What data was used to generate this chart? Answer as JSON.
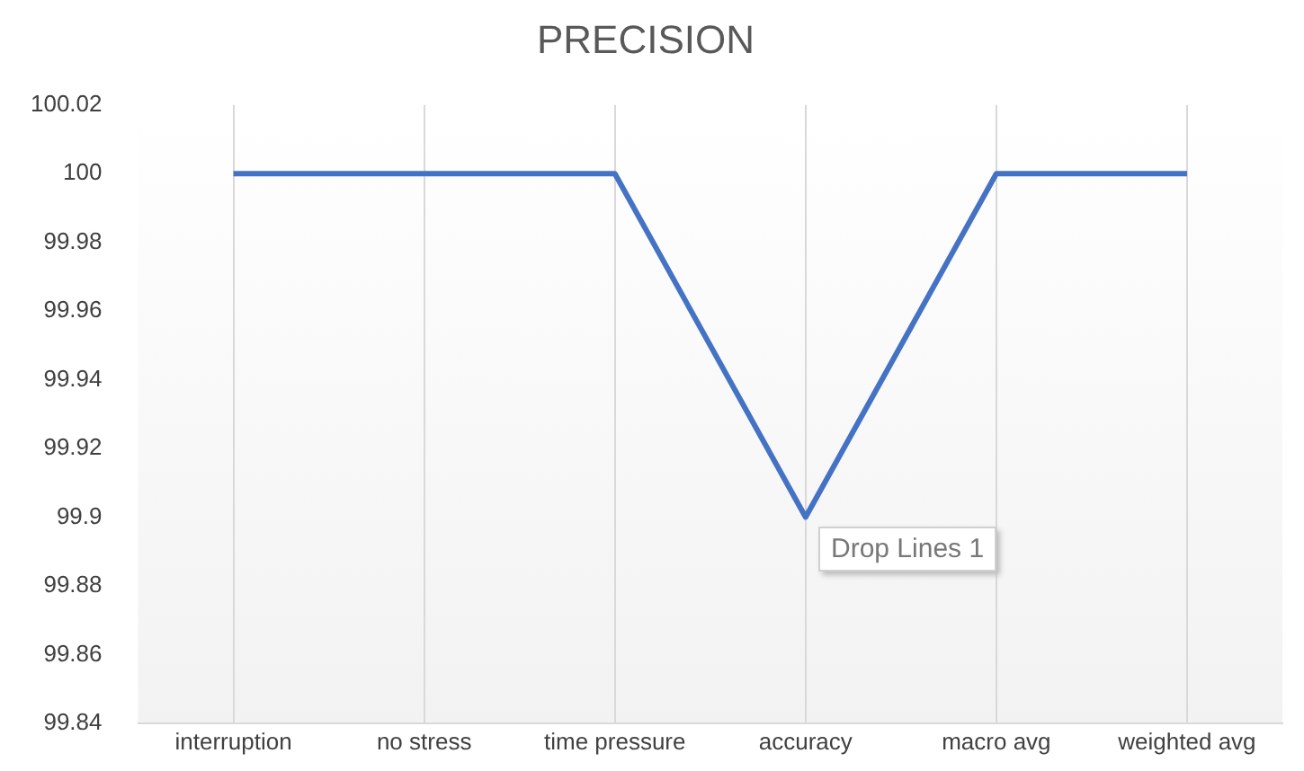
{
  "chart_data": {
    "type": "line",
    "title": "PRECISION",
    "categories": [
      "interruption",
      "no stress",
      "time pressure",
      "accuracy",
      "macro avg",
      "weighted avg"
    ],
    "series": [
      {
        "color": "#4472c4",
        "values": [
          100,
          100,
          100,
          99.9,
          100,
          100
        ]
      }
    ],
    "ylim": [
      99.84,
      100.02
    ],
    "yticks": [
      99.84,
      99.86,
      99.88,
      99.9,
      99.92,
      99.94,
      99.96,
      99.98,
      100,
      100.02
    ],
    "grid": "x",
    "legend": false,
    "marker": "none",
    "line_style": "solid",
    "annotations": [
      "Drop Lines 1"
    ]
  }
}
